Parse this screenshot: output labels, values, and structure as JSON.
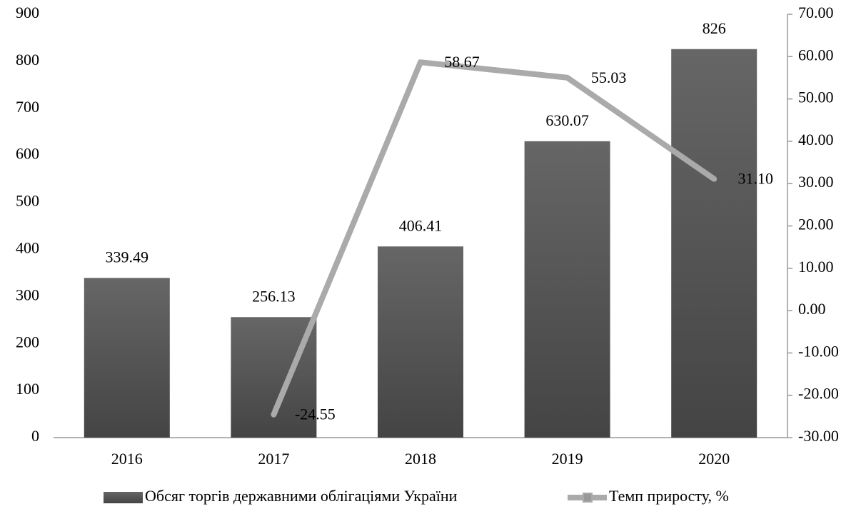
{
  "chart_data": {
    "type": "bar",
    "categories": [
      "2016",
      "2017",
      "2018",
      "2019",
      "2020"
    ],
    "series": [
      {
        "name": "Обсяг торгів державними облігаціями України",
        "type": "bar",
        "color": "#555555",
        "axis": "y",
        "values": [
          339.49,
          256.13,
          406.41,
          630.07,
          826
        ]
      },
      {
        "name": "Темп приросту, %",
        "type": "line",
        "color": "#aaaaaa",
        "axis": "y2",
        "values": [
          null,
          -24.55,
          58.67,
          55.03,
          31.1
        ],
        "value_labels": [
          null,
          "-24.55",
          "58.67",
          "55.03",
          "31.10"
        ]
      }
    ],
    "ylim": [
      0,
      900
    ],
    "yticks": [
      0,
      100,
      200,
      300,
      400,
      500,
      600,
      700,
      800,
      900
    ],
    "y2lim": [
      -30,
      70
    ],
    "y2ticks": [
      {
        "value": -30,
        "label": "-30.00"
      },
      {
        "value": -20,
        "label": "-20.00"
      },
      {
        "value": -10,
        "label": "-10.00"
      },
      {
        "value": 0,
        "label": "0.00"
      },
      {
        "value": 10,
        "label": "10.00"
      },
      {
        "value": 20,
        "label": "20.00"
      },
      {
        "value": 30,
        "label": "30.00"
      },
      {
        "value": 40,
        "label": "40.00"
      },
      {
        "value": 50,
        "label": "50.00"
      },
      {
        "value": 60,
        "label": "60.00"
      },
      {
        "value": 70,
        "label": "70.00"
      }
    ],
    "grid": false,
    "legend": "bottom"
  }
}
